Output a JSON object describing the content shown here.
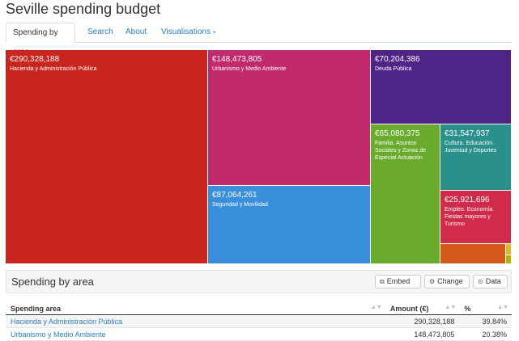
{
  "page": {
    "title": "Seville spending budget"
  },
  "tabs": [
    {
      "label": "Spending by area"
    },
    {
      "label": "Search"
    },
    {
      "label": "About"
    },
    {
      "label": "Visualisations",
      "caret": "▾"
    }
  ],
  "treemap": {
    "cells": [
      {
        "amount": "€290,328,188",
        "label": "Hacienda y Administración Pública",
        "color": "#c9251f"
      },
      {
        "amount": "€148,473,805",
        "label": "Urbanismo y Medio Ambiente",
        "color": "#c12a6b"
      },
      {
        "amount": "€87,064,261",
        "label": "Seguridad y Movilidad",
        "color": "#3a8fdc"
      },
      {
        "amount": "€70,204,386",
        "label": "Deuda Pública",
        "color": "#4e2486"
      },
      {
        "amount": "€65,080,375",
        "label": "Familia. Asuntos Sociales y Zonas de Especial Actuación",
        "color": "#6aab2e"
      },
      {
        "amount": "€31,547,937",
        "label": "Cultura. Educación. Juventud y Deportes",
        "color": "#2b8f8c"
      },
      {
        "amount": "€25,921,696",
        "label": "Empleo. Economía. Fiestas mayores y Turismo",
        "color": "#d02b4a"
      },
      {
        "amount": "",
        "label": "",
        "color": "#d45a1c"
      },
      {
        "amount": "",
        "label": "",
        "color": "#e8b52a"
      },
      {
        "amount": "",
        "label": "",
        "color": "#b8b000"
      }
    ]
  },
  "panel": {
    "title": "Spending by area",
    "embed_label": "Embed",
    "change_label": "Change",
    "data_label": "Data"
  },
  "table": {
    "columns": [
      "Spending area",
      "Amount (€)",
      "%"
    ],
    "rows": [
      {
        "area": "Hacienda y Administración Pública",
        "amount": "290,328,188",
        "pct": "39.84%"
      },
      {
        "area": "Urbanismo y Medio Ambiente",
        "amount": "148,473,805",
        "pct": "20.38%"
      }
    ]
  }
}
